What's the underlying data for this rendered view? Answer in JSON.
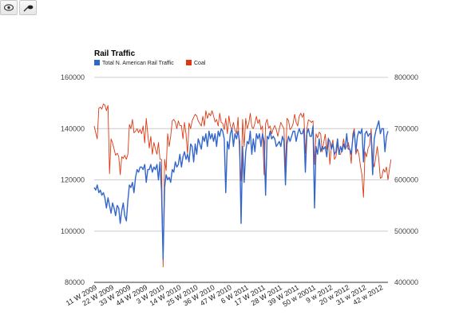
{
  "toolbar": {
    "view_icon": "eye-icon",
    "brush_icon": "brush-icon"
  },
  "chart_data": {
    "type": "line",
    "title": "Rail Traffic",
    "grid": true,
    "legend_position": "top-left",
    "ylim_left": [
      80000,
      160000
    ],
    "ylim_right": [
      400000,
      800000
    ],
    "yticks_left": [
      "80000",
      "100000",
      "120000",
      "140000",
      "160000"
    ],
    "yticks_right": [
      "400000",
      "500000",
      "600000",
      "700000",
      "800000"
    ],
    "x_tick_labels": [
      "11 W 2009",
      "22 W 2009",
      "33 W 2009",
      "44 W 2009",
      "3 W 2010",
      "14 W 2010",
      "25 W 2010",
      "36 W 2010",
      "47 W 2010",
      "6 W 2011",
      "17 W 2011",
      "28 W 2011",
      "39 W 2011",
      "50 w 20011",
      "9 w 2012",
      "20 w 2012",
      "31 w 2012",
      "42 w 2012"
    ],
    "x_tick_index": [
      0,
      11,
      22,
      33,
      44,
      55,
      66,
      77,
      88,
      99,
      110,
      121,
      132,
      143,
      154,
      165,
      176,
      187
    ],
    "series": [
      {
        "name": "Total N. American Rail Traffic",
        "axis": "left",
        "color": "#3366cc",
        "values": [
          117000,
          116000,
          118000,
          115000,
          116000,
          114000,
          115000,
          113000,
          109000,
          113000,
          110000,
          107000,
          111000,
          109000,
          106000,
          110000,
          109000,
          103000,
          108000,
          111000,
          106000,
          104000,
          112000,
          118000,
          117000,
          119000,
          115000,
          121000,
          124000,
          123000,
          125000,
          125000,
          124000,
          126000,
          119000,
          124000,
          124000,
          126000,
          123000,
          125000,
          124000,
          126000,
          120000,
          127000,
          116000,
          89000,
          117000,
          122000,
          120000,
          121000,
          119000,
          124000,
          123000,
          127000,
          125000,
          126000,
          130000,
          125000,
          129000,
          131000,
          128000,
          130000,
          127000,
          134000,
          133000,
          127000,
          134000,
          130000,
          136000,
          134000,
          132000,
          137000,
          135000,
          138000,
          133000,
          139000,
          136000,
          138000,
          135000,
          138000,
          133000,
          139000,
          137000,
          140000,
          139000,
          136000,
          115000,
          135000,
          132000,
          138000,
          140000,
          133000,
          138000,
          136000,
          139000,
          135000,
          103000,
          133000,
          119000,
          131000,
          135000,
          134000,
          139000,
          130000,
          136000,
          131000,
          138000,
          136000,
          138000,
          133000,
          138000,
          135000,
          114000,
          137000,
          136000,
          139000,
          136000,
          137000,
          136000,
          133000,
          134000,
          135000,
          133000,
          137000,
          135000,
          118000,
          134000,
          137000,
          135000,
          137000,
          139000,
          139000,
          135000,
          138000,
          140000,
          138000,
          138000,
          140000,
          123000,
          138000,
          140000,
          137000,
          137000,
          141000,
          109000,
          133000,
          130000,
          136000,
          131000,
          133000,
          132000,
          133000,
          129000,
          136000,
          135000,
          132000,
          134000,
          130000,
          131000,
          136000,
          130000,
          133000,
          131000,
          134000,
          132000,
          138000,
          132000,
          132000,
          130000,
          136000,
          139000,
          131000,
          137000,
          139000,
          138000,
          140000,
          127000,
          138000,
          139000,
          137000,
          138000,
          138000,
          122000,
          136000,
          139000,
          141000,
          143000,
          138000,
          140000,
          140000,
          131000,
          137000,
          139000
        ]
      },
      {
        "name": "Coal",
        "axis": "right",
        "color": "#dc3912",
        "values": [
          705000,
          692000,
          680000,
          740000,
          742000,
          738000,
          748000,
          746000,
          735000,
          745000,
          612000,
          680000,
          672000,
          660000,
          648000,
          652000,
          646000,
          610000,
          645000,
          642000,
          648000,
          640000,
          650000,
          708000,
          700000,
          718000,
          692000,
          695000,
          700000,
          692000,
          698000,
          690000,
          705000,
          672000,
          720000,
          690000,
          662000,
          685000,
          650000,
          673000,
          660000,
          650000,
          673000,
          640000,
          640000,
          430000,
          640000,
          618000,
          690000,
          665000,
          685000,
          715000,
          718000,
          713000,
          700000,
          715000,
          706000,
          706000,
          680000,
          712000,
          690000,
          650000,
          711000,
          700000,
          715000,
          722000,
          728000,
          725000,
          715000,
          710000,
          705000,
          724000,
          705000,
          735000,
          720000,
          730000,
          725000,
          735000,
          725000,
          713000,
          718000,
          705000,
          730000,
          712000,
          710000,
          698000,
          720000,
          690000,
          725000,
          705000,
          698000,
          712000,
          697000,
          690000,
          722000,
          650000,
          598000,
          718000,
          665000,
          720000,
          700000,
          710000,
          730000,
          704000,
          700000,
          710000,
          724000,
          710000,
          718000,
          698000,
          705000,
          610000,
          710000,
          718000,
          701000,
          705000,
          690000,
          700000,
          706000,
          698000,
          685000,
          700000,
          712000,
          705000,
          700000,
          621000,
          720000,
          716000,
          698000,
          702000,
          710000,
          728000,
          712000,
          705000,
          724000,
          730000,
          722000,
          730000,
          651000,
          700000,
          717000,
          715000,
          712000,
          715000,
          630000,
          690000,
          682000,
          693000,
          690000,
          655000,
          673000,
          689000,
          659000,
          682000,
          630000,
          665000,
          678000,
          640000,
          645000,
          670000,
          650000,
          650000,
          660000,
          680000,
          659000,
          665000,
          673000,
          660000,
          632000,
          690000,
          700000,
          650000,
          660000,
          650000,
          627000,
          610000,
          566000,
          655000,
          645000,
          662000,
          668000,
          700000,
          640000,
          625000,
          645000,
          665000,
          640000,
          603000,
          605000,
          621000,
          615000,
          625000,
          600000,
          622000,
          640000
        ]
      }
    ]
  }
}
